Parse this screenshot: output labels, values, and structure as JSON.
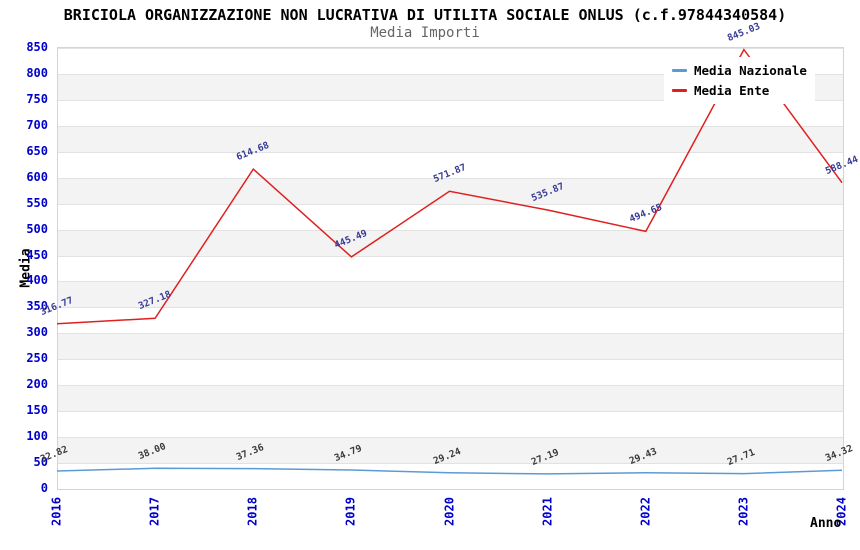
{
  "header": {
    "title": "BRICIOLA ORGANIZZAZIONE NON LUCRATIVA DI UTILITA SOCIALE ONLUS (c.f.97844340584)",
    "subtitle": "Media Importi"
  },
  "chart_data": {
    "type": "line",
    "x": [
      "2016",
      "2017",
      "2018",
      "2019",
      "2020",
      "2021",
      "2022",
      "2023",
      "2024"
    ],
    "series": [
      {
        "name": "Media Nazionale",
        "color": "#5b9bd5",
        "label_color": "#3a3a3a",
        "values": [
          32.82,
          38.0,
          37.36,
          34.79,
          29.24,
          27.19,
          29.43,
          27.71,
          34.32
        ],
        "labels": [
          "32.82",
          "38.00",
          "37.36",
          "34.79",
          "29.24",
          "27.19",
          "29.43",
          "27.71",
          "34.32"
        ]
      },
      {
        "name": "Media Ente",
        "color": "#e02020",
        "label_color": "#383a96",
        "values": [
          316.77,
          327.18,
          614.68,
          445.49,
          571.87,
          535.87,
          494.65,
          845.03,
          588.44
        ],
        "labels": [
          "316.77",
          "327.18",
          "614.68",
          "445.49",
          "571.87",
          "535.87",
          "494.65",
          "845.03",
          "588.44"
        ]
      }
    ],
    "xlabel": "Anno",
    "ylabel": "Media",
    "ylim": [
      0,
      850
    ],
    "yticks": [
      0,
      50,
      100,
      150,
      200,
      250,
      300,
      350,
      400,
      450,
      500,
      550,
      600,
      650,
      700,
      750,
      800,
      850
    ],
    "grid": "horizontal-stripes",
    "legend": {
      "position": "top-right",
      "items": [
        "Media Nazionale",
        "Media Ente"
      ]
    },
    "colors": {
      "tick_label": "#0000cd",
      "stripe": "#f3f3f3",
      "gridline": "#e2e2e2",
      "plot_border": "#d4d4d4",
      "title": "#000000",
      "subtitle": "#666666"
    }
  }
}
